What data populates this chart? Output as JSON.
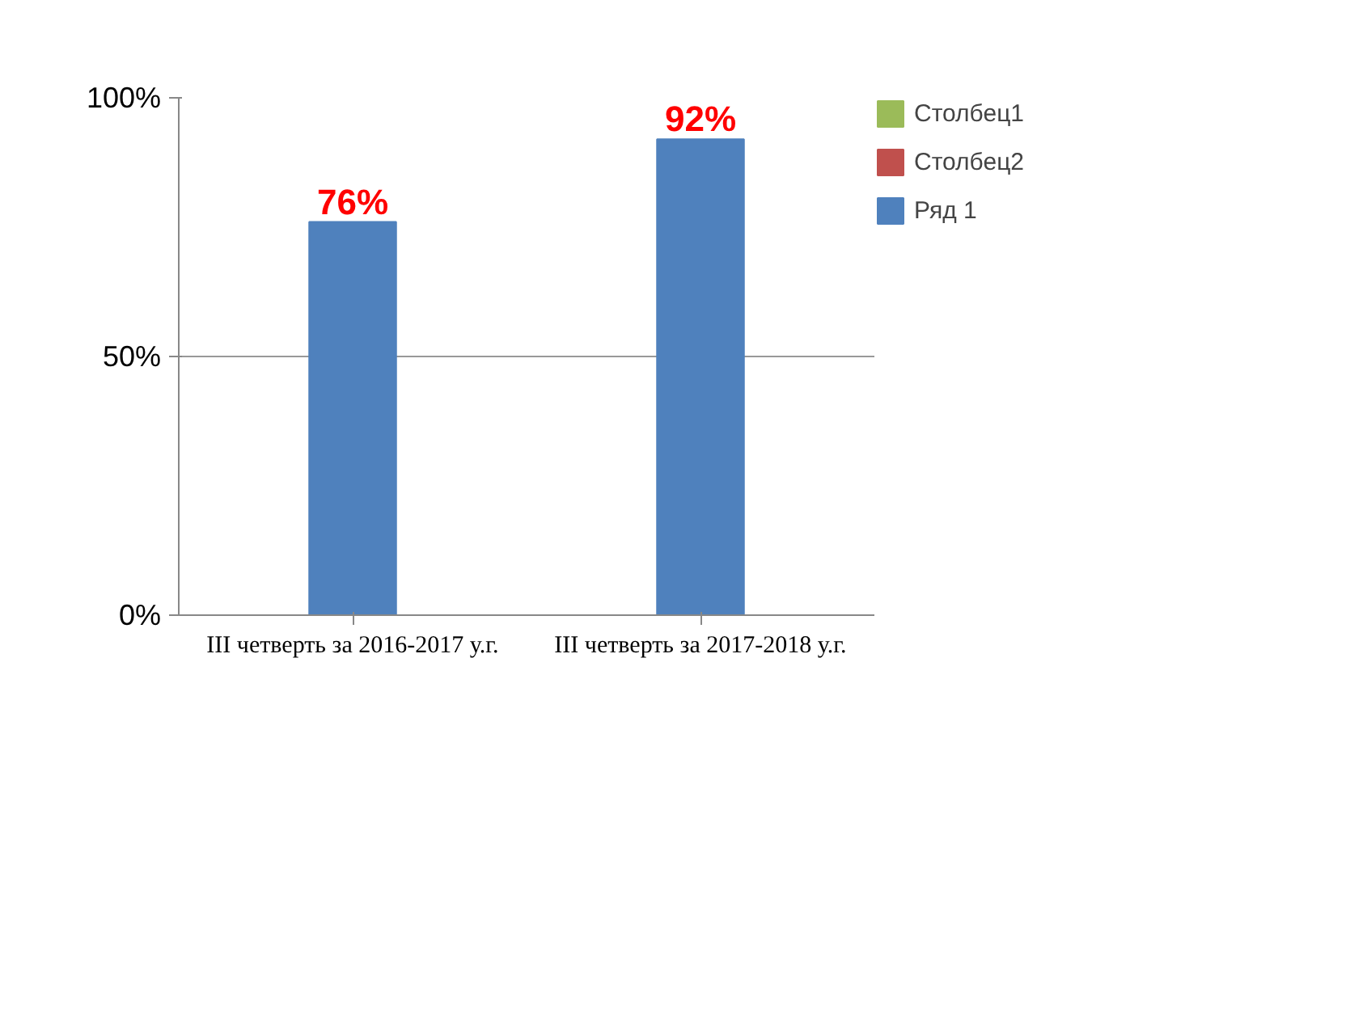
{
  "chart_data": {
    "type": "bar",
    "categories": [
      "III четверть за 2016-2017 у.г.",
      "III четверть за 2017-2018 у.г."
    ],
    "series": [
      {
        "name": "Столбец1",
        "color": "#9bbb59",
        "values": [
          null,
          null
        ]
      },
      {
        "name": "Столбец2",
        "color": "#c0504d",
        "values": [
          null,
          null
        ]
      },
      {
        "name": "Ряд 1",
        "color": "#4f81bd",
        "values": [
          76,
          92
        ],
        "value_labels": [
          "76%",
          "92%"
        ]
      }
    ],
    "ylim": [
      0,
      100
    ],
    "yticks": [
      {
        "value": 0,
        "label": "0%"
      },
      {
        "value": 50,
        "label": "50%"
      },
      {
        "value": 100,
        "label": "100%"
      }
    ],
    "grid": "y",
    "legend": "right"
  }
}
